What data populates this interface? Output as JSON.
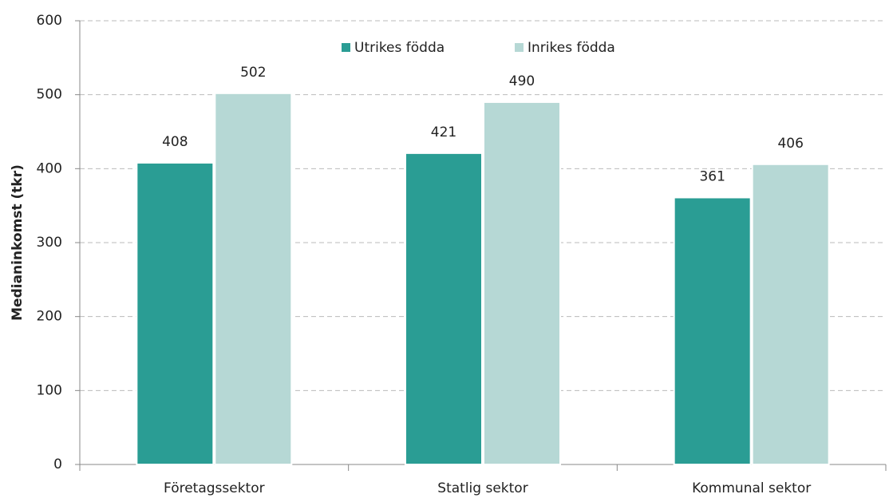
{
  "chart_data": {
    "type": "bar",
    "ylabel": "Medianinkomst (tkr)",
    "categories": [
      "Företagssektor",
      "Statlig sektor",
      "Kommunal sektor"
    ],
    "series": [
      {
        "name": "Utrikes födda",
        "color": "#2a9d94",
        "values": [
          408,
          421,
          361
        ]
      },
      {
        "name": "Inrikes födda",
        "color": "#b6d8d5",
        "values": [
          502,
          490,
          406
        ]
      }
    ],
    "ylim": [
      0,
      600
    ],
    "yticks": [
      0,
      100,
      200,
      300,
      400,
      500,
      600
    ],
    "grid": true,
    "legend": "top",
    "data_labels": true
  }
}
